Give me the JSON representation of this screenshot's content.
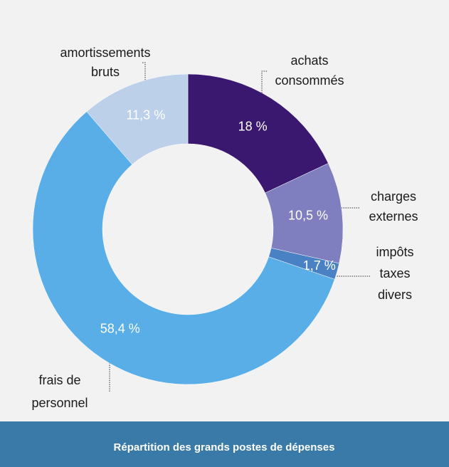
{
  "chart_data": {
    "type": "donut",
    "title": "Répartition des grands postes de dépenses",
    "categories": [
      [
        "achats",
        "consommés"
      ],
      [
        "charges",
        "externes"
      ],
      [
        "impôts",
        "taxes",
        "divers"
      ],
      [
        "frais de",
        "personnel"
      ],
      [
        "amortissements",
        "bruts"
      ]
    ],
    "values": [
      18,
      10.5,
      1.7,
      58.4,
      11.3
    ],
    "value_labels": [
      "18 %",
      "10,5 %",
      "1,7 %",
      "58,4 %",
      "11,3 %"
    ],
    "colors": [
      "#3b1870",
      "#7f7fbf",
      "#4a80c4",
      "#59aee8",
      "#bcd0ea"
    ]
  }
}
